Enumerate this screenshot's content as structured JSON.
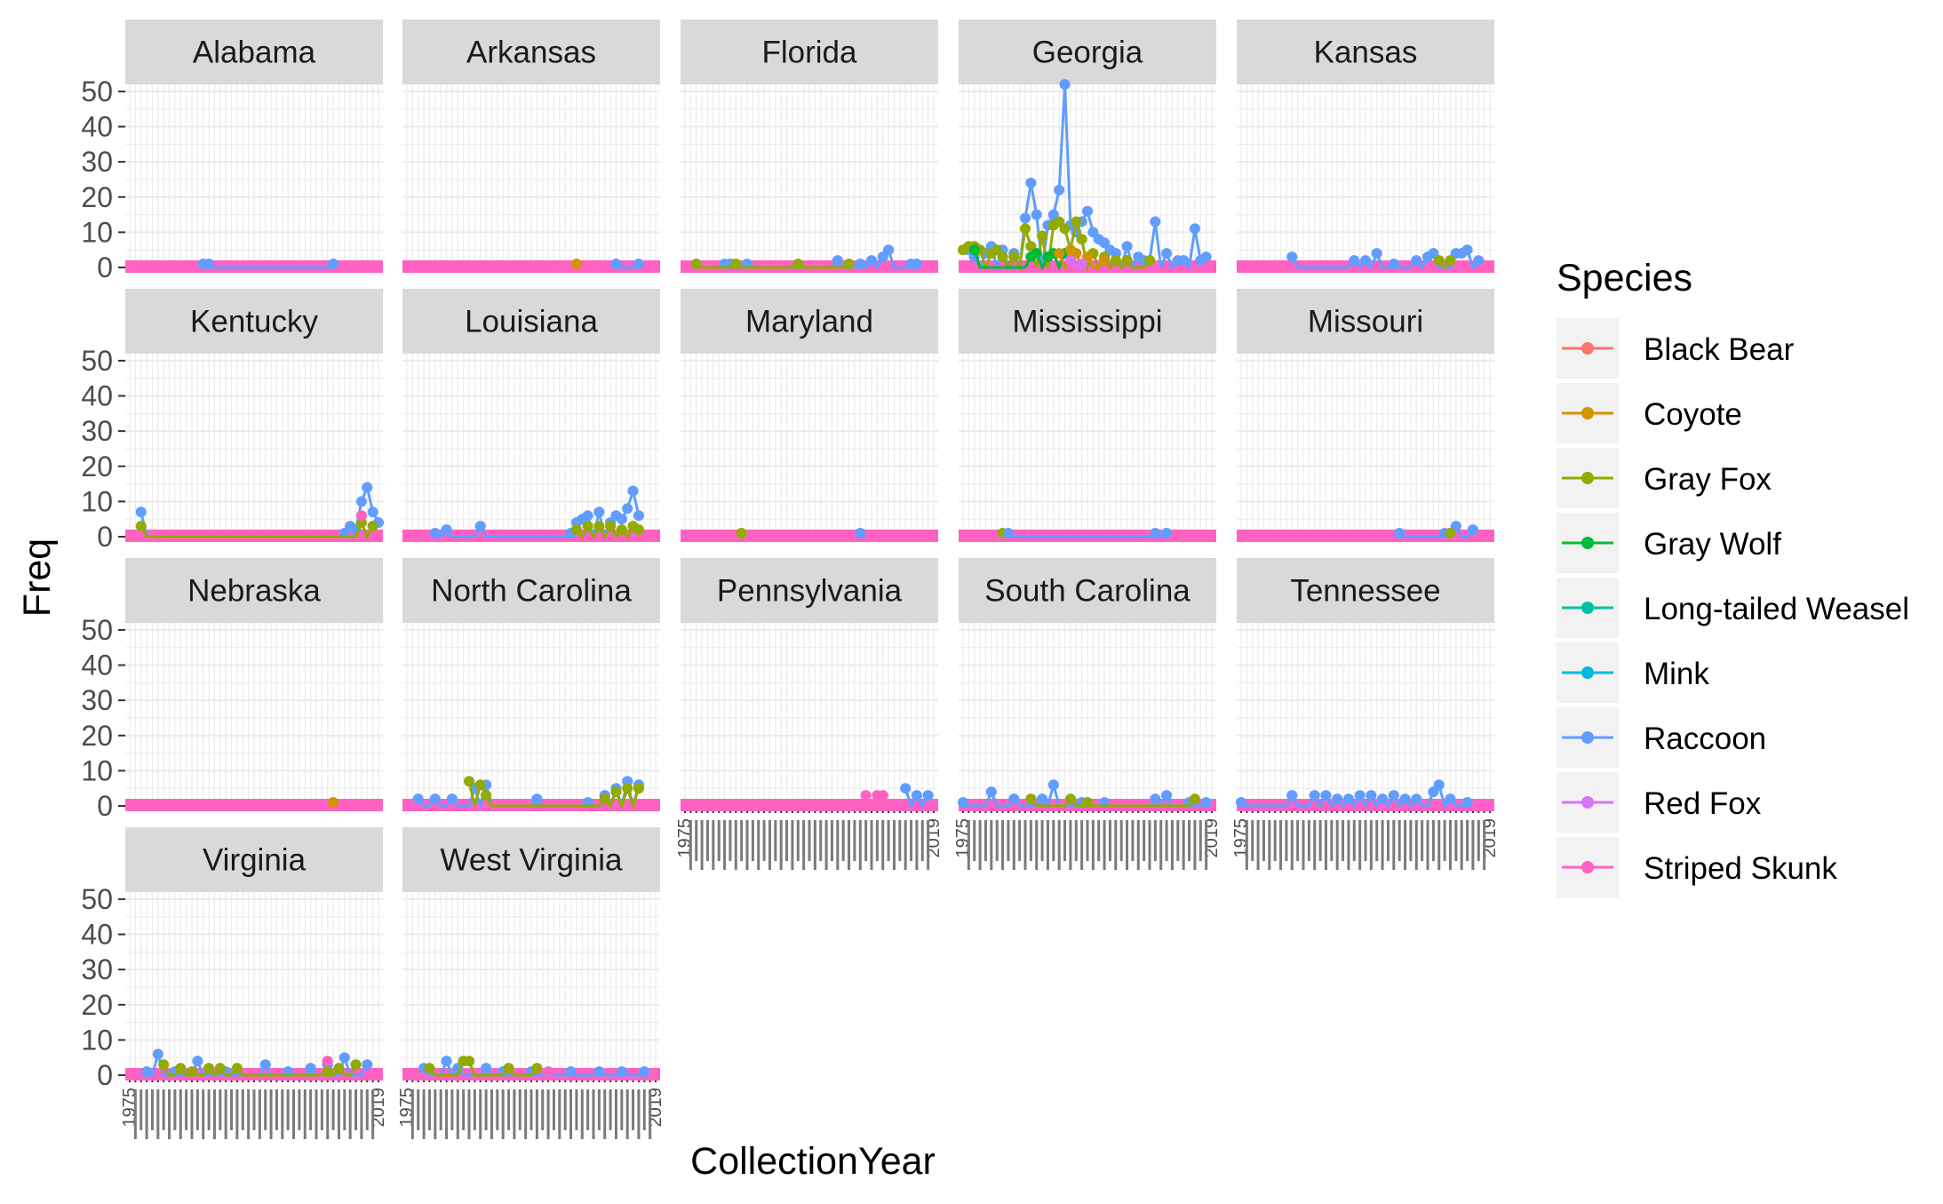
{
  "chart_data": {
    "type": "line",
    "facet_by": "State",
    "facets": [
      "Alabama",
      "Arkansas",
      "Florida",
      "Georgia",
      "Kansas",
      "Kentucky",
      "Louisiana",
      "Maryland",
      "Mississippi",
      "Missouri",
      "Nebraska",
      "North Carolina",
      "Pennsylvania",
      "South Carolina",
      "Tennessee",
      "Virginia",
      "West Virginia"
    ],
    "xlabel": "CollectionYear",
    "ylabel": "Freq",
    "ylim": [
      0,
      52
    ],
    "y_ticks": [
      0,
      10,
      20,
      30,
      40,
      50
    ],
    "x_first_tick": "1975",
    "x_last_tick": "2019",
    "x_categories_count": 45,
    "legend": {
      "title": "Species",
      "position": "right",
      "entries": [
        {
          "name": "Black Bear",
          "color": "#F8766D"
        },
        {
          "name": "Coyote",
          "color": "#D39200"
        },
        {
          "name": "Gray Fox",
          "color": "#93AA00"
        },
        {
          "name": "Gray Wolf",
          "color": "#00BA38"
        },
        {
          "name": "Long-tailed Weasel",
          "color": "#00C19F"
        },
        {
          "name": "Mink",
          "color": "#00B9E3"
        },
        {
          "name": "Raccoon",
          "color": "#619CFF"
        },
        {
          "name": "Red Fox",
          "color": "#DB72FB"
        },
        {
          "name": "Striped Skunk",
          "color": "#FF61C3"
        }
      ]
    },
    "grid": true,
    "background": {
      "panel": "#FFFFFF",
      "strip": "#D9D9D9",
      "gridline": "#EBEBEB"
    },
    "series_note_values": {
      "Georgia": {
        "Raccoon": [
          [
            2,
            5
          ],
          [
            3,
            3
          ],
          [
            5,
            4
          ],
          [
            6,
            6
          ],
          [
            8,
            5
          ],
          [
            10,
            4
          ],
          [
            12,
            14
          ],
          [
            13,
            24
          ],
          [
            14,
            15
          ],
          [
            16,
            12
          ],
          [
            17,
            15
          ],
          [
            18,
            22
          ],
          [
            19,
            52
          ],
          [
            20,
            12
          ],
          [
            21,
            10
          ],
          [
            22,
            13
          ],
          [
            23,
            16
          ],
          [
            24,
            10
          ],
          [
            25,
            8
          ],
          [
            26,
            7
          ],
          [
            27,
            5
          ],
          [
            28,
            4
          ],
          [
            30,
            6
          ],
          [
            32,
            3
          ],
          [
            33,
            2
          ],
          [
            34,
            2
          ],
          [
            35,
            13
          ],
          [
            37,
            4
          ],
          [
            39,
            2
          ],
          [
            40,
            2
          ],
          [
            42,
            11
          ],
          [
            43,
            2
          ],
          [
            44,
            3
          ]
        ],
        "Gray Fox": [
          [
            1,
            5
          ],
          [
            2,
            6
          ],
          [
            3,
            6
          ],
          [
            4,
            5
          ],
          [
            6,
            4
          ],
          [
            7,
            5
          ],
          [
            8,
            3
          ],
          [
            10,
            3
          ],
          [
            12,
            11
          ],
          [
            13,
            6
          ],
          [
            15,
            9
          ],
          [
            17,
            12
          ],
          [
            18,
            13
          ],
          [
            19,
            11
          ],
          [
            20,
            5
          ],
          [
            21,
            13
          ],
          [
            22,
            8
          ],
          [
            24,
            4
          ],
          [
            26,
            3
          ],
          [
            28,
            2
          ],
          [
            30,
            2
          ],
          [
            34,
            2
          ]
        ],
        "Gray Wolf": [
          [
            3,
            5
          ],
          [
            13,
            3
          ],
          [
            14,
            4
          ],
          [
            16,
            3
          ],
          [
            17,
            4
          ],
          [
            19,
            4
          ],
          [
            20,
            2
          ]
        ],
        "Coyote": [
          [
            18,
            4
          ],
          [
            20,
            5
          ],
          [
            21,
            4
          ],
          [
            23,
            3
          ],
          [
            26,
            2
          ]
        ],
        "Red Fox": [
          [
            20,
            2
          ],
          [
            22,
            1
          ]
        ]
      },
      "Kentucky": {
        "Raccoon": [
          [
            3,
            7
          ],
          [
            39,
            1
          ],
          [
            40,
            3
          ],
          [
            41,
            2
          ],
          [
            42,
            10
          ],
          [
            43,
            14
          ],
          [
            44,
            7
          ],
          [
            45,
            4
          ]
        ],
        "Gray Fox": [
          [
            3,
            3
          ],
          [
            42,
            4
          ],
          [
            44,
            3
          ]
        ],
        "Striped Skunk": [
          [
            42,
            6
          ]
        ]
      },
      "Louisiana": {
        "Raccoon": [
          [
            6,
            1
          ],
          [
            8,
            2
          ],
          [
            14,
            3
          ],
          [
            30,
            1
          ],
          [
            31,
            4
          ],
          [
            32,
            5
          ],
          [
            33,
            6
          ],
          [
            35,
            7
          ],
          [
            37,
            4
          ],
          [
            38,
            6
          ],
          [
            39,
            5
          ],
          [
            40,
            8
          ],
          [
            41,
            13
          ],
          [
            42,
            6
          ]
        ],
        "Gray Fox": [
          [
            31,
            2
          ],
          [
            33,
            3
          ],
          [
            35,
            3
          ],
          [
            37,
            3
          ],
          [
            39,
            2
          ],
          [
            41,
            3
          ],
          [
            42,
            2
          ]
        ]
      },
      "North Carolina": {
        "Raccoon": [
          [
            3,
            2
          ],
          [
            6,
            2
          ],
          [
            9,
            2
          ],
          [
            13,
            5
          ],
          [
            15,
            6
          ],
          [
            24,
            2
          ],
          [
            33,
            1
          ],
          [
            36,
            3
          ],
          [
            38,
            5
          ],
          [
            40,
            7
          ],
          [
            42,
            6
          ]
        ],
        "Gray Fox": [
          [
            12,
            7
          ],
          [
            14,
            6
          ],
          [
            15,
            3
          ],
          [
            36,
            2
          ],
          [
            38,
            4
          ],
          [
            40,
            5
          ],
          [
            42,
            5
          ]
        ]
      },
      "Pennsylvania": {
        "Striped Skunk": [
          [
            33,
            3
          ],
          [
            35,
            3
          ],
          [
            36,
            3
          ]
        ],
        "Raccoon": [
          [
            40,
            5
          ],
          [
            42,
            3
          ],
          [
            44,
            3
          ]
        ]
      },
      "South Carolina": {
        "Raccoon": [
          [
            1,
            1
          ],
          [
            6,
            4
          ],
          [
            10,
            2
          ],
          [
            15,
            2
          ],
          [
            17,
            6
          ],
          [
            22,
            1
          ],
          [
            26,
            1
          ],
          [
            35,
            2
          ],
          [
            37,
            3
          ],
          [
            41,
            1
          ],
          [
            44,
            1
          ]
        ],
        "Gray Fox": [
          [
            13,
            2
          ],
          [
            20,
            2
          ],
          [
            23,
            1
          ],
          [
            42,
            2
          ]
        ]
      },
      "Tennessee": {
        "Raccoon": [
          [
            1,
            1
          ],
          [
            10,
            3
          ],
          [
            14,
            3
          ],
          [
            16,
            3
          ],
          [
            18,
            2
          ],
          [
            20,
            2
          ],
          [
            22,
            3
          ],
          [
            24,
            3
          ],
          [
            26,
            2
          ],
          [
            28,
            3
          ],
          [
            30,
            2
          ],
          [
            32,
            2
          ],
          [
            35,
            4
          ],
          [
            36,
            6
          ],
          [
            38,
            2
          ],
          [
            41,
            1
          ]
        ]
      },
      "Virginia": {
        "Raccoon": [
          [
            4,
            1
          ],
          [
            6,
            6
          ],
          [
            9,
            1
          ],
          [
            13,
            4
          ],
          [
            18,
            1
          ],
          [
            25,
            3
          ],
          [
            29,
            1
          ],
          [
            33,
            2
          ],
          [
            36,
            3
          ],
          [
            39,
            5
          ],
          [
            43,
            3
          ]
        ],
        "Gray Fox": [
          [
            7,
            3
          ],
          [
            10,
            2
          ],
          [
            12,
            1
          ],
          [
            15,
            2
          ],
          [
            17,
            2
          ],
          [
            20,
            2
          ],
          [
            36,
            1
          ],
          [
            38,
            2
          ],
          [
            41,
            3
          ]
        ],
        "Striped Skunk": [
          [
            36,
            4
          ]
        ]
      },
      "West Virginia": {
        "Raccoon": [
          [
            4,
            2
          ],
          [
            8,
            4
          ],
          [
            10,
            2
          ],
          [
            15,
            2
          ],
          [
            18,
            1
          ],
          [
            23,
            1
          ],
          [
            30,
            1
          ],
          [
            35,
            1
          ],
          [
            39,
            1
          ],
          [
            43,
            1
          ]
        ],
        "Gray Fox": [
          [
            5,
            2
          ],
          [
            11,
            4
          ],
          [
            12,
            4
          ],
          [
            19,
            2
          ],
          [
            24,
            2
          ]
        ],
        "Striped Skunk": [
          [
            26,
            1
          ]
        ]
      },
      "Florida": {
        "Raccoon": [
          [
            8,
            1
          ],
          [
            9,
            1
          ],
          [
            12,
            1
          ],
          [
            28,
            2
          ],
          [
            32,
            1
          ],
          [
            34,
            2
          ],
          [
            36,
            3
          ],
          [
            37,
            5
          ],
          [
            41,
            1
          ],
          [
            42,
            1
          ]
        ],
        "Gray Fox": [
          [
            3,
            1
          ],
          [
            10,
            1
          ],
          [
            21,
            1
          ],
          [
            30,
            1
          ]
        ]
      },
      "Kansas": {
        "Raccoon": [
          [
            10,
            3
          ],
          [
            21,
            2
          ],
          [
            23,
            2
          ],
          [
            25,
            4
          ],
          [
            28,
            1
          ],
          [
            32,
            2
          ],
          [
            34,
            3
          ],
          [
            35,
            4
          ],
          [
            39,
            4
          ],
          [
            40,
            4
          ],
          [
            41,
            5
          ],
          [
            43,
            2
          ]
        ],
        "Gray Fox": [
          [
            36,
            2
          ],
          [
            38,
            2
          ]
        ]
      },
      "Alabama": {
        "Raccoon": [
          [
            14,
            1
          ],
          [
            15,
            1
          ],
          [
            37,
            1
          ]
        ]
      },
      "Arkansas": {
        "Coyote": [
          [
            31,
            1
          ]
        ],
        "Raccoon": [
          [
            38,
            1
          ],
          [
            42,
            1
          ]
        ]
      },
      "Maryland": {
        "Gray Fox": [
          [
            11,
            1
          ]
        ],
        "Raccoon": [
          [
            32,
            1
          ]
        ]
      },
      "Mississippi": {
        "Gray Fox": [
          [
            8,
            1
          ]
        ],
        "Raccoon": [
          [
            9,
            1
          ],
          [
            35,
            1
          ],
          [
            37,
            1
          ]
        ]
      },
      "Missouri": {
        "Raccoon": [
          [
            29,
            1
          ],
          [
            37,
            1
          ],
          [
            39,
            3
          ],
          [
            42,
            2
          ]
        ],
        "Gray Fox": [
          [
            38,
            1
          ]
        ]
      },
      "Nebraska": {
        "Coyote": [
          [
            37,
            1
          ]
        ]
      }
    }
  }
}
